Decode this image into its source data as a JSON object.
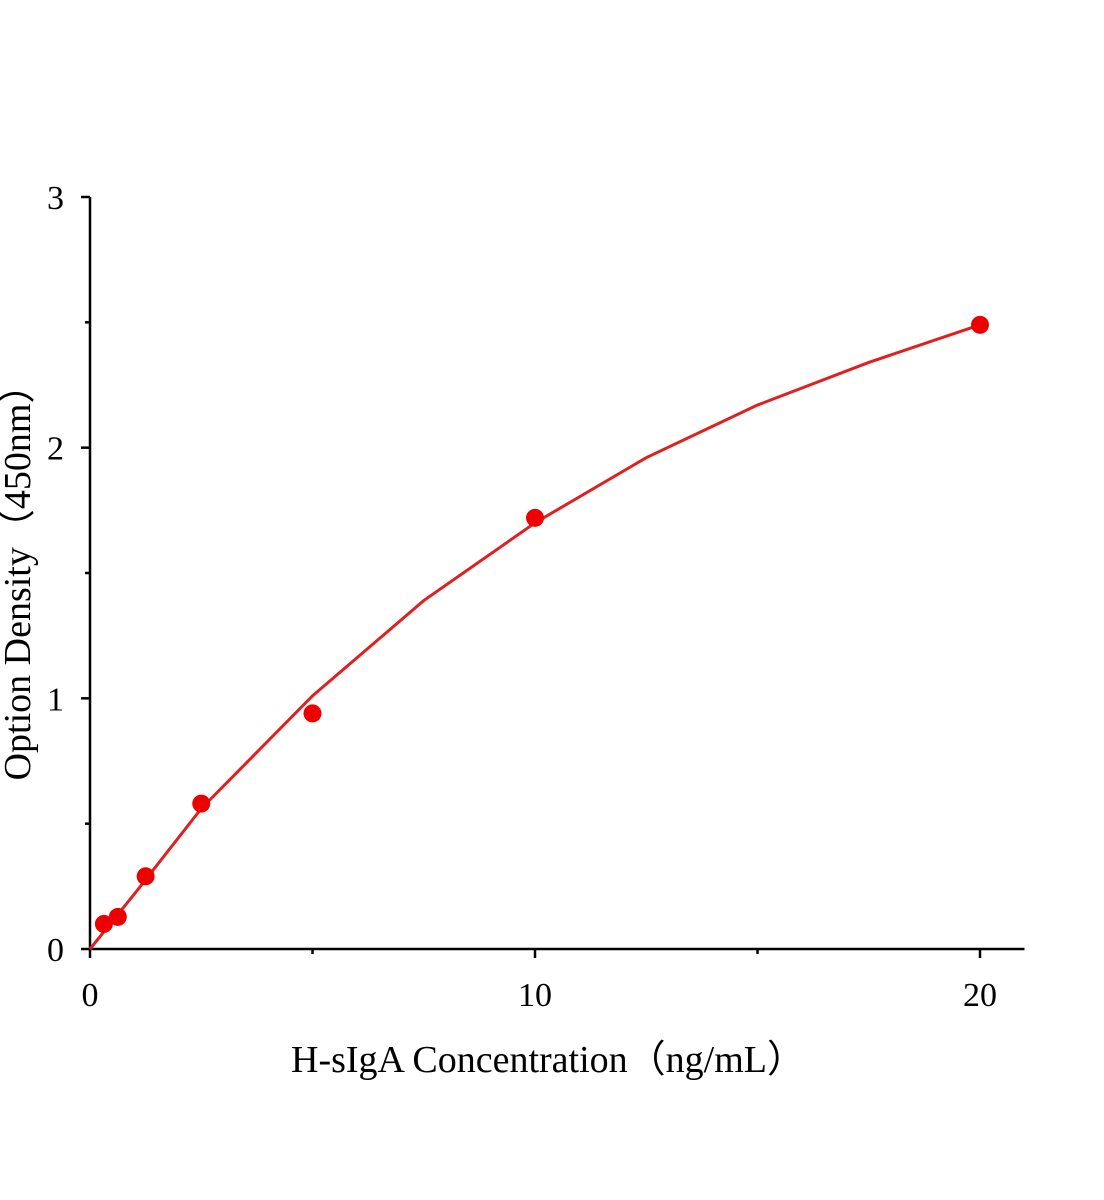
{
  "chart_data": {
    "type": "scatter",
    "x_label": "H-sIgA Concentration（ng/mL）",
    "y_label": "Option Density（450nm）",
    "xlim": [
      0,
      21
    ],
    "ylim": [
      0,
      3
    ],
    "xticks": [
      0,
      10,
      20
    ],
    "yticks": [
      0,
      1,
      2,
      3
    ],
    "x_minor_ticks": [
      5,
      15
    ],
    "y_minor_ticks": [
      0.5,
      1.5,
      2.5
    ],
    "series": [
      {
        "color": "#ee0000",
        "x": [
          0.3125,
          0.625,
          1.25,
          2.5,
          5,
          10,
          20
        ],
        "values": [
          0.1,
          0.128,
          0.29,
          0.58,
          0.94,
          1.72,
          2.49
        ]
      },
      {
        "type": "line",
        "color": "#e02020",
        "x": [
          0,
          1,
          2.5,
          5,
          7.5,
          10,
          12.5,
          15,
          17.5,
          20
        ],
        "values": [
          0,
          0.22,
          0.56,
          1.01,
          1.39,
          1.7,
          1.96,
          2.17,
          2.34,
          2.49
        ]
      }
    ]
  }
}
